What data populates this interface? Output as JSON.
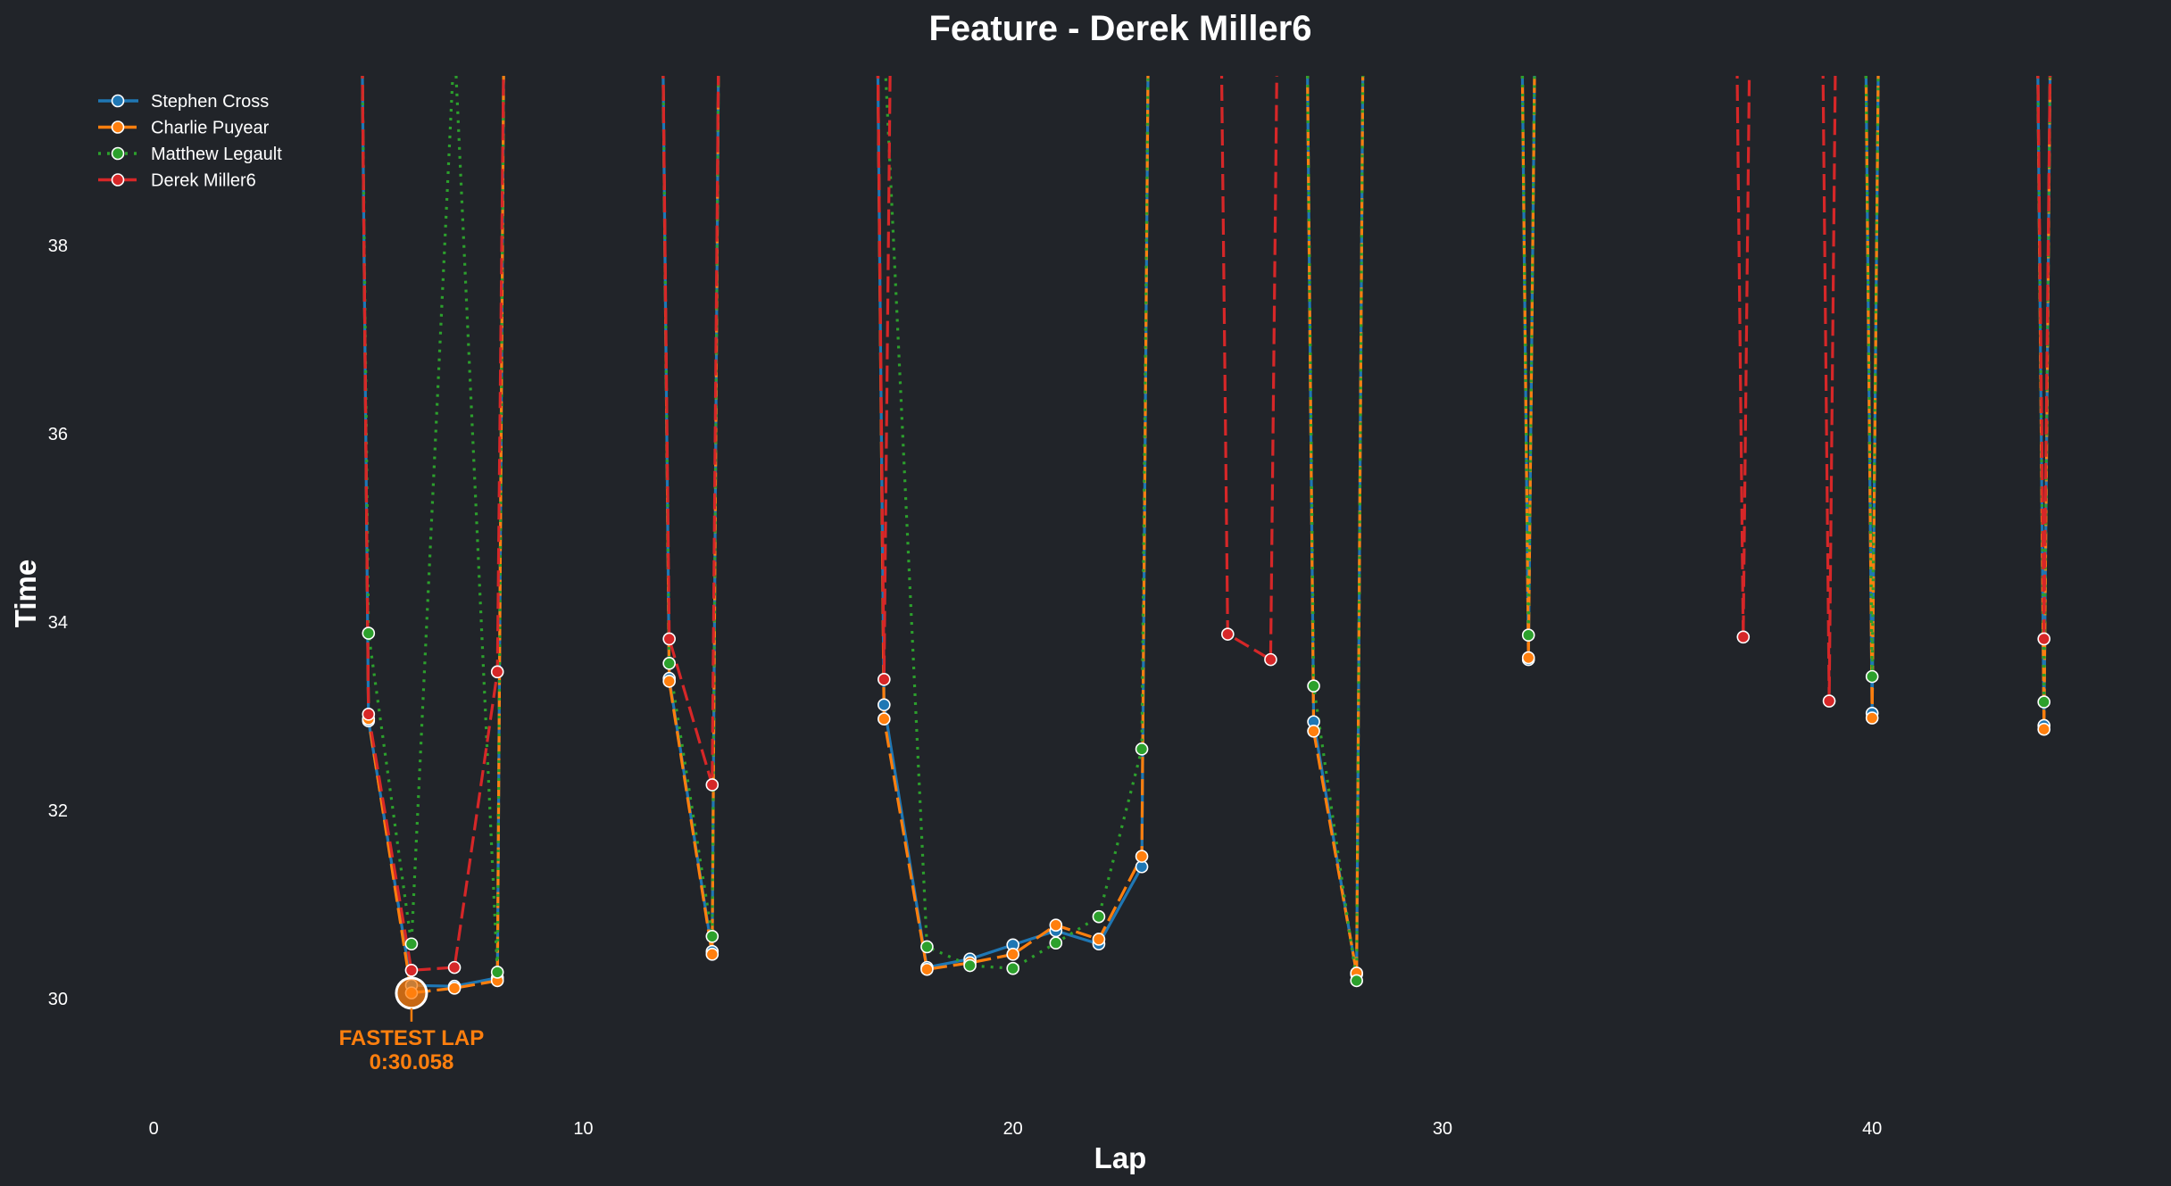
{
  "chart_data": {
    "type": "line",
    "title": "Feature - Derek Miller6",
    "xlabel": "Lap",
    "ylabel": "Time",
    "xlim": [
      -1.5,
      46.5
    ],
    "ylim": [
      28.9,
      39.8
    ],
    "xticks": [
      0,
      10,
      20,
      30,
      40
    ],
    "yticks": [
      30,
      32,
      34,
      36,
      38
    ],
    "grid": false,
    "legend_position": "top-left",
    "series": [
      {
        "name": "Stephen Cross",
        "color": "#1f77b4",
        "linestyle": "solid",
        "points": [
          [
            5,
            32.95
          ],
          [
            6,
            30.14
          ],
          [
            7,
            30.13
          ],
          [
            8,
            30.22
          ],
          [
            12,
            33.4
          ],
          [
            13,
            30.5
          ],
          [
            17,
            33.12
          ],
          [
            18,
            30.33
          ],
          [
            19,
            30.42
          ],
          [
            20,
            30.57
          ],
          [
            21,
            30.72
          ],
          [
            22,
            30.58
          ],
          [
            23,
            31.4
          ],
          [
            27,
            32.94
          ],
          [
            28,
            30.26
          ],
          [
            32,
            33.6
          ],
          [
            40,
            33.03
          ],
          [
            44,
            32.9
          ]
        ]
      },
      {
        "name": "Charlie Puyear",
        "color": "#ff7f0e",
        "linestyle": "dashed",
        "points": [
          [
            5,
            32.97
          ],
          [
            6,
            30.06
          ],
          [
            7,
            30.11
          ],
          [
            8,
            30.19
          ],
          [
            12,
            33.37
          ],
          [
            13,
            30.47
          ],
          [
            17,
            32.97
          ],
          [
            18,
            30.31
          ],
          [
            19,
            30.38
          ],
          [
            20,
            30.47
          ],
          [
            21,
            30.78
          ],
          [
            22,
            30.63
          ],
          [
            23,
            31.51
          ],
          [
            27,
            32.84
          ],
          [
            28,
            30.27
          ],
          [
            32,
            33.62
          ],
          [
            40,
            32.98
          ],
          [
            44,
            32.86
          ]
        ]
      },
      {
        "name": "Matthew Legault",
        "color": "#2ca02c",
        "linestyle": "dotted",
        "points": [
          [
            5,
            33.88
          ],
          [
            6,
            30.58
          ],
          [
            7,
            null
          ],
          [
            8,
            30.28
          ],
          [
            12,
            33.56
          ],
          [
            13,
            30.66
          ],
          [
            17,
            null
          ],
          [
            18,
            30.55
          ],
          [
            19,
            30.35
          ],
          [
            20,
            30.32
          ],
          [
            21,
            30.59
          ],
          [
            22,
            30.87
          ],
          [
            23,
            32.65
          ],
          [
            27,
            33.32
          ],
          [
            28,
            30.19
          ],
          [
            32,
            33.86
          ],
          [
            40,
            33.42
          ],
          [
            44,
            33.15
          ]
        ]
      },
      {
        "name": "Derek Miller6",
        "color": "#d62728",
        "linestyle": "dashed",
        "points": [
          [
            5,
            33.02
          ],
          [
            6,
            30.3
          ],
          [
            7,
            30.33
          ],
          [
            8,
            33.47
          ],
          [
            12,
            33.82
          ],
          [
            13,
            32.27
          ],
          [
            17,
            33.39
          ],
          [
            25,
            33.87
          ],
          [
            26,
            33.6
          ],
          [
            37,
            33.84
          ],
          [
            39,
            33.16
          ],
          [
            44,
            33.82
          ]
        ]
      }
    ],
    "fastest_lap": {
      "lap": 6,
      "time": 30.058,
      "label": "FASTEST LAP",
      "time_label": "0:30.058",
      "color": "#ff7f0e"
    }
  }
}
